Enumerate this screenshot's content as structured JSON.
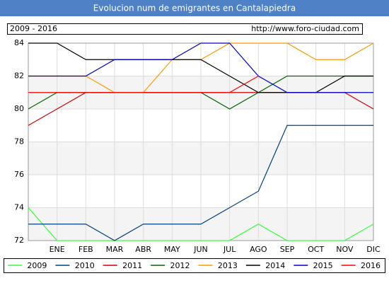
{
  "chart_data": {
    "type": "line",
    "title": "Evolucion num de emigrantes en Cantalapiedra",
    "subtitle": "2009 - 2016",
    "source": "http://www.foro-ciudad.com",
    "categories": [
      null,
      "ENE",
      "FEB",
      "MAR",
      "ABR",
      "MAY",
      "JUN",
      "JUL",
      "AGO",
      "SEP",
      "OCT",
      "NOV",
      "DIC"
    ],
    "ylim": [
      72,
      84
    ],
    "yticks": [
      72,
      74,
      76,
      78,
      80,
      82,
      84
    ],
    "grid": true,
    "series": [
      {
        "name": "2009",
        "color": "#33ff33",
        "values": [
          74,
          72,
          72,
          72,
          72,
          72,
          72,
          72,
          73,
          72,
          72,
          72,
          73
        ]
      },
      {
        "name": "2010",
        "color": "#004080",
        "values": [
          73,
          73,
          73,
          72,
          73,
          73,
          73,
          74,
          75,
          79,
          79,
          79,
          79
        ]
      },
      {
        "name": "2011",
        "color": "#cc0000",
        "values": [
          79,
          80,
          81,
          81,
          81,
          81,
          81,
          81,
          81,
          81,
          81,
          81,
          80
        ]
      },
      {
        "name": "2012",
        "color": "#006600",
        "values": [
          80,
          81,
          81,
          81,
          81,
          81,
          81,
          80,
          81,
          82,
          82,
          82,
          82
        ]
      },
      {
        "name": "2013",
        "color": "#ff9900",
        "values": [
          82,
          82,
          82,
          81,
          81,
          83,
          83,
          84,
          84,
          84,
          83,
          83,
          84
        ]
      },
      {
        "name": "2014",
        "color": "#000000",
        "values": [
          84,
          84,
          83,
          83,
          83,
          83,
          83,
          82,
          81,
          81,
          81,
          82,
          82
        ]
      },
      {
        "name": "2015",
        "color": "#0000cc",
        "values": [
          82,
          82,
          82,
          83,
          83,
          83,
          84,
          84,
          82,
          81,
          81,
          81,
          81
        ]
      },
      {
        "name": "2016",
        "color": "#ff0000",
        "values": [
          81,
          81,
          81,
          81,
          81,
          81,
          81,
          81,
          82,
          null,
          null,
          null,
          null
        ]
      }
    ]
  }
}
